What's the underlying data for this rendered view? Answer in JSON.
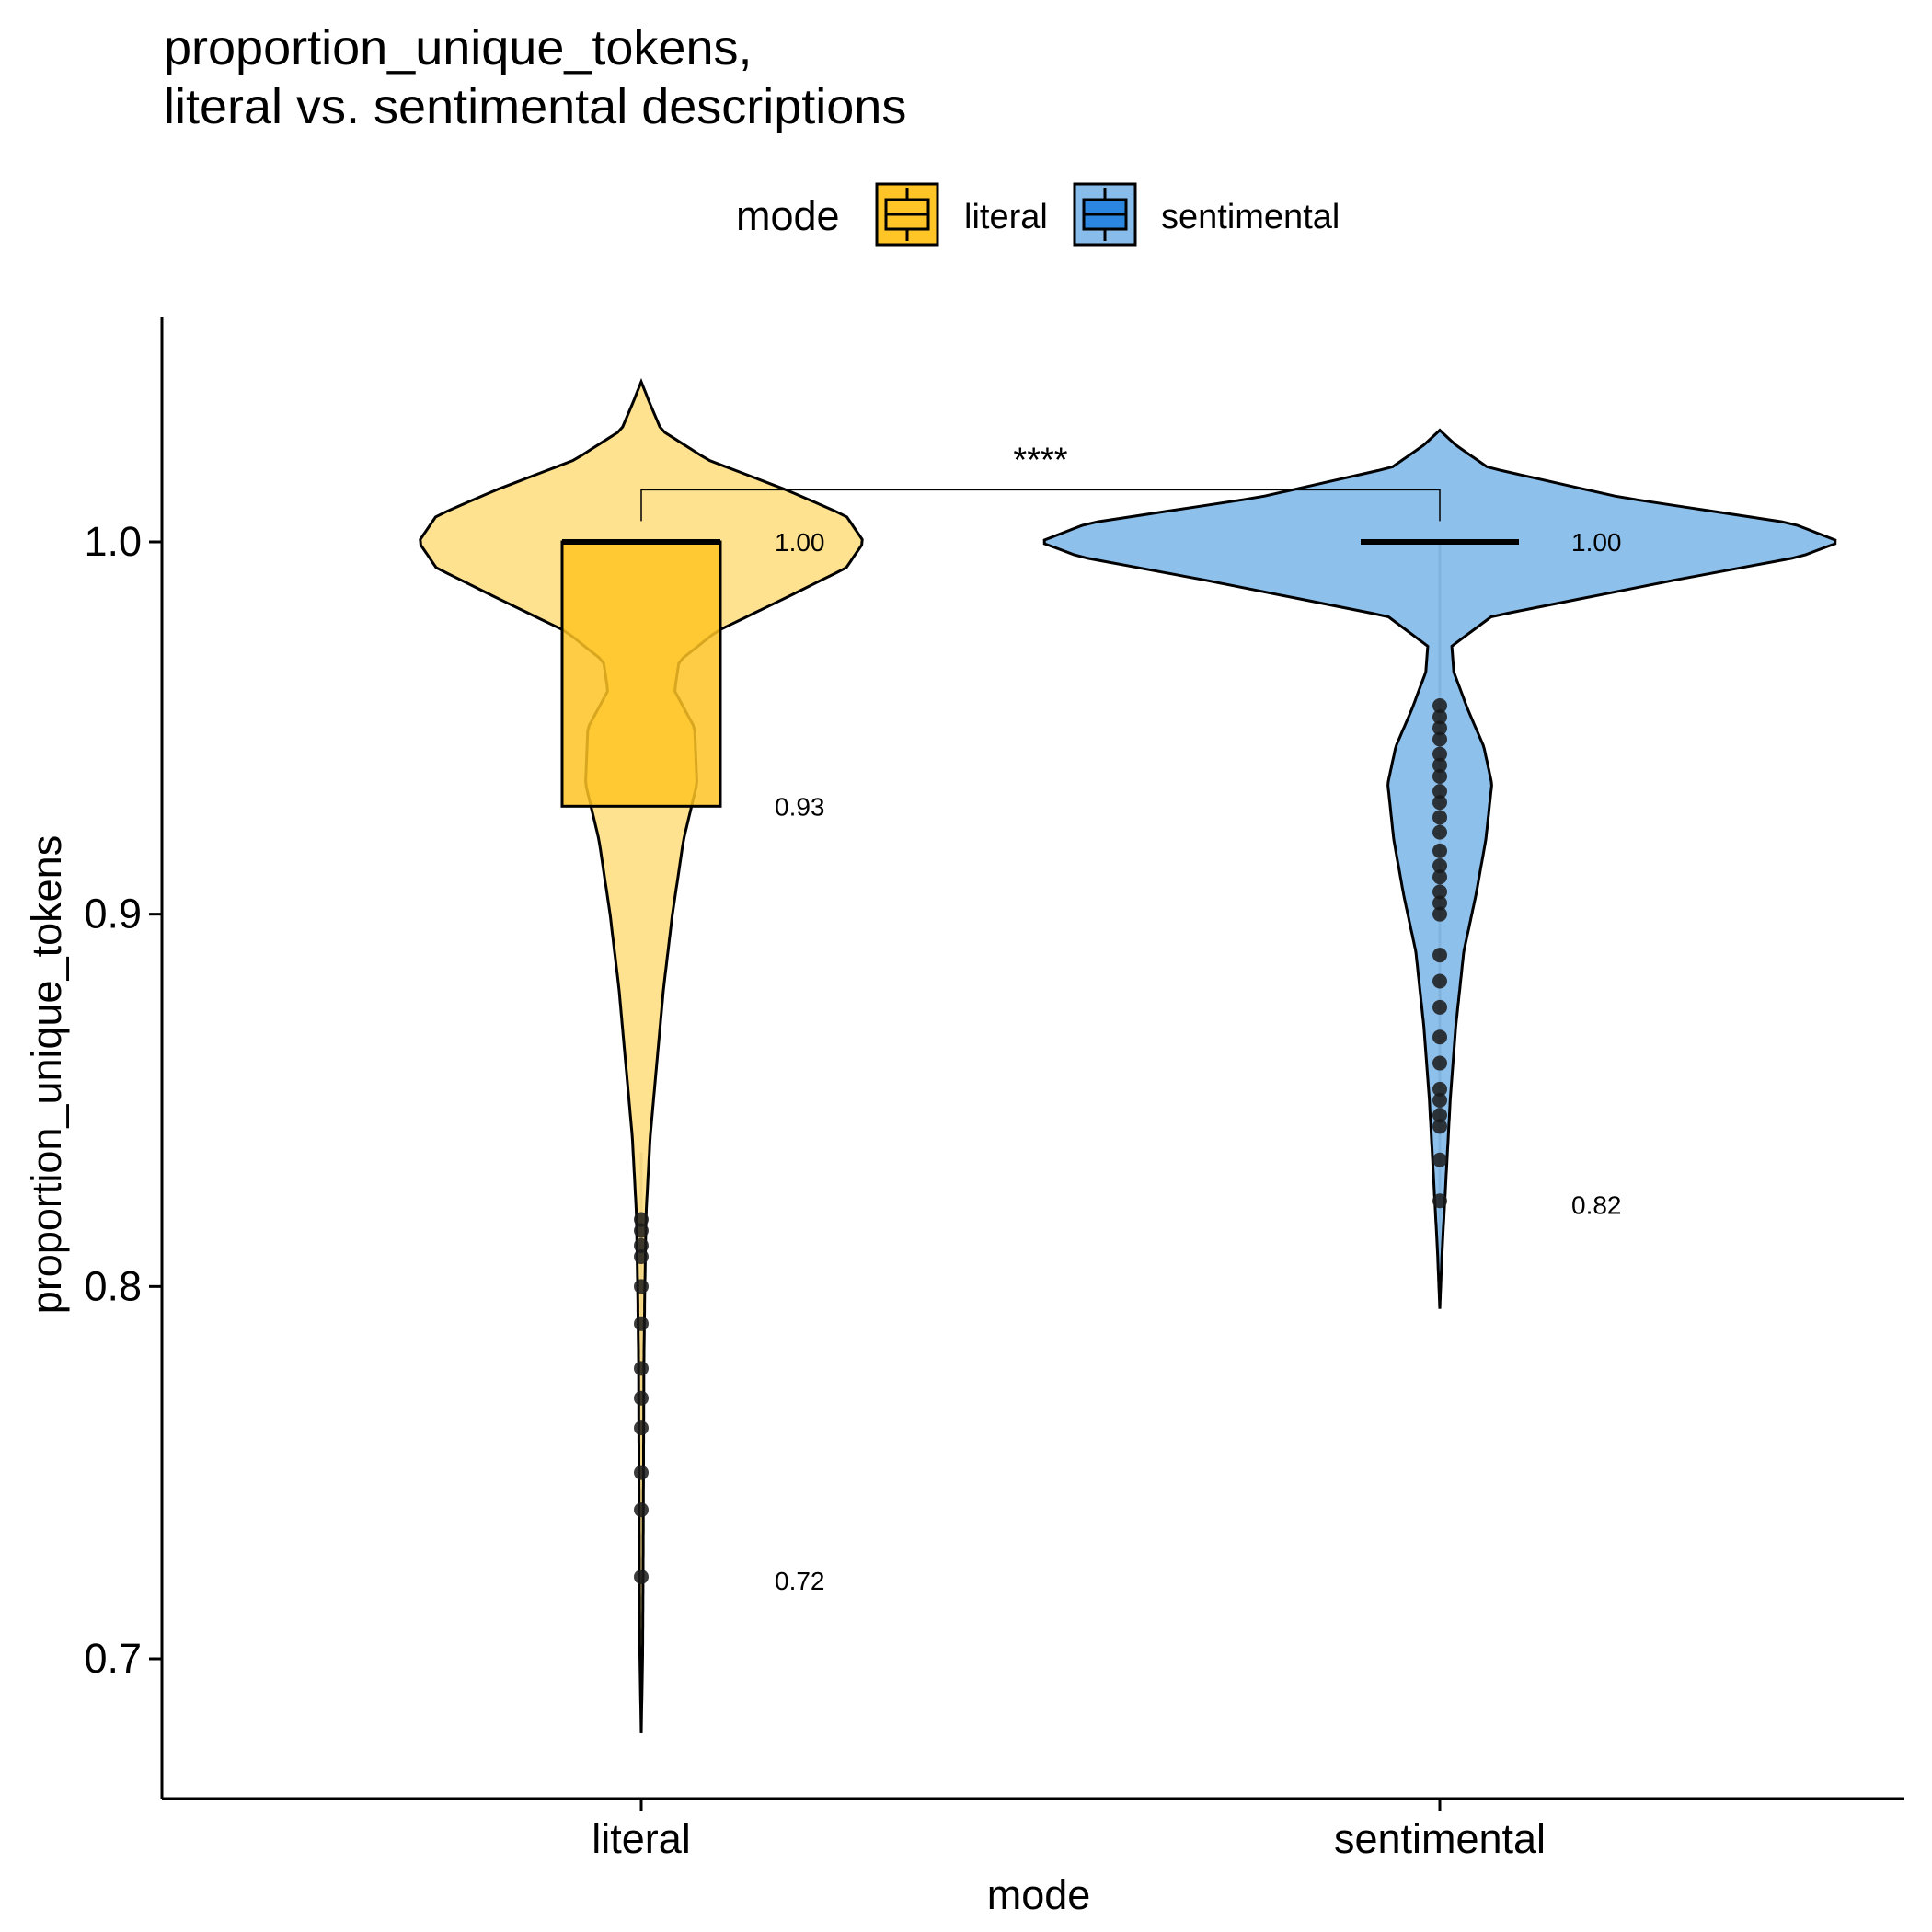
{
  "chart_data": {
    "type": "violin",
    "title_line1": "proportion_unique_tokens,",
    "title_line2": "literal vs. sentimental descriptions",
    "xlabel": "mode",
    "ylabel": "proportion_unique_tokens",
    "ylim": [
      0.66,
      1.06
    ],
    "yticks": [
      0.7,
      0.8,
      0.9,
      1.0
    ],
    "ytick_labels": [
      "0.7",
      "0.8",
      "0.9",
      "1.0"
    ],
    "legend": {
      "title": "mode",
      "position": "top",
      "items": [
        {
          "label": "literal",
          "color": "#FFC425"
        },
        {
          "label": "sentimental",
          "color": "#2A86E0"
        }
      ]
    },
    "significance": {
      "label": "****",
      "y": 1.014
    },
    "series": [
      {
        "name": "literal",
        "violin_color": "#FFE08A",
        "box_color": "#FFC425",
        "box": {
          "q1": 0.929,
          "median": 1.0,
          "q3": 1.0,
          "whisker_low": 0.836,
          "whisker_high": 1.0
        },
        "tail_min": 0.68,
        "violin_max": 1.043,
        "labels": [
          {
            "text": "1.00",
            "y": 1.0
          },
          {
            "text": "0.93",
            "y": 0.929
          },
          {
            "text": "0.72",
            "y": 0.721
          }
        ],
        "outliers": [
          0.818,
          0.815,
          0.811,
          0.808,
          0.8,
          0.79,
          0.778,
          0.77,
          0.762,
          0.75,
          0.74,
          0.722
        ],
        "density": [
          [
            0.68,
            0.0
          ],
          [
            0.7,
            0.006
          ],
          [
            0.72,
            0.008
          ],
          [
            0.75,
            0.01
          ],
          [
            0.78,
            0.012
          ],
          [
            0.8,
            0.016
          ],
          [
            0.82,
            0.022
          ],
          [
            0.84,
            0.04
          ],
          [
            0.86,
            0.07
          ],
          [
            0.88,
            0.1
          ],
          [
            0.9,
            0.14
          ],
          [
            0.92,
            0.19
          ],
          [
            0.935,
            0.25
          ],
          [
            0.95,
            0.24
          ],
          [
            0.96,
            0.15
          ],
          [
            0.968,
            0.17
          ],
          [
            0.976,
            0.34
          ],
          [
            0.985,
            0.65
          ],
          [
            0.993,
            0.92
          ],
          [
            1.0,
            1.0
          ],
          [
            1.007,
            0.92
          ],
          [
            1.014,
            0.65
          ],
          [
            1.022,
            0.3
          ],
          [
            1.03,
            0.09
          ],
          [
            1.037,
            0.04
          ],
          [
            1.043,
            0.0
          ]
        ]
      },
      {
        "name": "sentimental",
        "violin_color": "#88BDEB",
        "box_color": "#2A86E0",
        "box": {
          "q1": 1.0,
          "median": 1.0,
          "q3": 1.0,
          "whisker_low": 1.0,
          "whisker_high": 1.0
        },
        "tail_min": 0.794,
        "violin_max": 1.03,
        "labels": [
          {
            "text": "1.00",
            "y": 1.0
          },
          {
            "text": "0.82",
            "y": 0.822
          }
        ],
        "outliers": [
          0.956,
          0.953,
          0.95,
          0.947,
          0.943,
          0.94,
          0.937,
          0.933,
          0.93,
          0.926,
          0.922,
          0.917,
          0.913,
          0.91,
          0.906,
          0.903,
          0.9,
          0.889,
          0.882,
          0.875,
          0.867,
          0.86,
          0.853,
          0.85,
          0.846,
          0.843,
          0.834,
          0.823
        ],
        "density": [
          [
            0.794,
            0.0
          ],
          [
            0.81,
            0.006
          ],
          [
            0.83,
            0.016
          ],
          [
            0.85,
            0.026
          ],
          [
            0.87,
            0.04
          ],
          [
            0.89,
            0.06
          ],
          [
            0.905,
            0.09
          ],
          [
            0.92,
            0.115
          ],
          [
            0.935,
            0.13
          ],
          [
            0.945,
            0.11
          ],
          [
            0.955,
            0.07
          ],
          [
            0.965,
            0.035
          ],
          [
            0.972,
            0.03
          ],
          [
            0.98,
            0.13
          ],
          [
            0.99,
            0.6
          ],
          [
            0.996,
            0.9
          ],
          [
            1.0,
            1.0
          ],
          [
            1.005,
            0.88
          ],
          [
            1.012,
            0.45
          ],
          [
            1.02,
            0.12
          ],
          [
            1.026,
            0.04
          ],
          [
            1.03,
            0.0
          ]
        ]
      }
    ]
  }
}
